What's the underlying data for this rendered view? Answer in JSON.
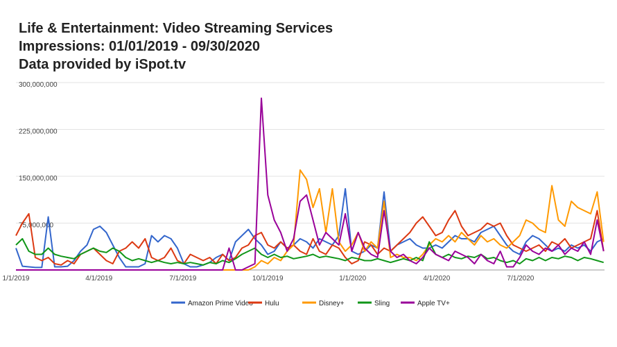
{
  "chart_data": {
    "type": "line",
    "title": [
      "Life & Entertainment: Video Streaming Services",
      "Impressions: 01/01/2019 - 09/30/2020",
      "Data provided by iSpot.tv"
    ],
    "xlabel": "",
    "ylabel": "",
    "xlim": [
      "2019-01-01",
      "2020-09-30"
    ],
    "ylim": [
      0,
      300000000
    ],
    "y_ticks": [
      0,
      75000000,
      150000000,
      225000000,
      300000000
    ],
    "y_tick_labels": [
      "",
      "75,000,000",
      "150,000,000",
      "225,000,000",
      "300,000,000"
    ],
    "x_ticks": [
      "2019-01-01",
      "2019-04-01",
      "2019-07-01",
      "2019-10-01",
      "2020-01-01",
      "2020-04-01",
      "2020-07-01"
    ],
    "x_tick_labels": [
      "1/1/2019",
      "4/1/2019",
      "7/1/2019",
      "10/1/2019",
      "1/1/2020",
      "4/1/2020",
      "7/1/2020"
    ],
    "grid": true,
    "legend": "bottom",
    "x": [
      "2019-01-01",
      "2019-01-08",
      "2019-01-15",
      "2019-01-22",
      "2019-01-29",
      "2019-02-05",
      "2019-02-12",
      "2019-02-19",
      "2019-02-26",
      "2019-03-05",
      "2019-03-12",
      "2019-03-19",
      "2019-03-26",
      "2019-04-02",
      "2019-04-09",
      "2019-04-16",
      "2019-04-23",
      "2019-04-30",
      "2019-05-07",
      "2019-05-14",
      "2019-05-21",
      "2019-05-28",
      "2019-06-04",
      "2019-06-11",
      "2019-06-18",
      "2019-06-25",
      "2019-07-02",
      "2019-07-09",
      "2019-07-16",
      "2019-07-23",
      "2019-07-30",
      "2019-08-06",
      "2019-08-13",
      "2019-08-20",
      "2019-08-27",
      "2019-09-03",
      "2019-09-10",
      "2019-09-17",
      "2019-09-24",
      "2019-10-01",
      "2019-10-08",
      "2019-10-15",
      "2019-10-22",
      "2019-10-29",
      "2019-11-05",
      "2019-11-12",
      "2019-11-19",
      "2019-11-26",
      "2019-12-03",
      "2019-12-10",
      "2019-12-17",
      "2019-12-24",
      "2019-12-31",
      "2020-01-07",
      "2020-01-14",
      "2020-01-21",
      "2020-01-28",
      "2020-02-04",
      "2020-02-11",
      "2020-02-18",
      "2020-02-25",
      "2020-03-03",
      "2020-03-10",
      "2020-03-17",
      "2020-03-24",
      "2020-03-31",
      "2020-04-07",
      "2020-04-14",
      "2020-04-21",
      "2020-04-28",
      "2020-05-05",
      "2020-05-12",
      "2020-05-19",
      "2020-05-26",
      "2020-06-02",
      "2020-06-09",
      "2020-06-16",
      "2020-06-23",
      "2020-06-30",
      "2020-07-07",
      "2020-07-14",
      "2020-07-21",
      "2020-07-28",
      "2020-08-04",
      "2020-08-11",
      "2020-08-18",
      "2020-08-25",
      "2020-09-01",
      "2020-09-08",
      "2020-09-15",
      "2020-09-22",
      "2020-09-29"
    ],
    "series": [
      {
        "name": "Amazon Prime Video",
        "color": "#3366cc",
        "values": [
          35000000.0,
          6000000.0,
          5000000.0,
          4000000.0,
          4000000.0,
          85000000.0,
          5000000.0,
          5000000.0,
          6000000.0,
          15000000.0,
          30000000.0,
          40000000.0,
          65000000.0,
          70000000.0,
          60000000.0,
          40000000.0,
          20000000.0,
          5000000.0,
          5000000.0,
          5000000.0,
          10000000.0,
          55000000.0,
          45000000.0,
          55000000.0,
          50000000.0,
          35000000.0,
          10000000.0,
          5000000.0,
          5000000.0,
          8000000.0,
          12000000.0,
          20000000.0,
          25000000.0,
          15000000.0,
          45000000.0,
          55000000.0,
          65000000.0,
          50000000.0,
          40000000.0,
          25000000.0,
          30000000.0,
          45000000.0,
          35000000.0,
          40000000.0,
          50000000.0,
          45000000.0,
          35000000.0,
          50000000.0,
          45000000.0,
          40000000.0,
          55000000.0,
          130000000.0,
          30000000.0,
          25000000.0,
          30000000.0,
          40000000.0,
          35000000.0,
          125000000.0,
          30000000.0,
          40000000.0,
          45000000.0,
          50000000.0,
          40000000.0,
          35000000.0,
          35000000.0,
          40000000.0,
          35000000.0,
          45000000.0,
          55000000.0,
          50000000.0,
          50000000.0,
          45000000.0,
          60000000.0,
          65000000.0,
          70000000.0,
          55000000.0,
          40000000.0,
          30000000.0,
          25000000.0,
          45000000.0,
          55000000.0,
          50000000.0,
          40000000.0,
          30000000.0,
          35000000.0,
          30000000.0,
          40000000.0,
          35000000.0,
          40000000.0,
          30000000.0,
          45000000.0,
          50000000.0
        ]
      },
      {
        "name": "Hulu",
        "color": "#dc3912",
        "values": [
          55000000.0,
          75000000.0,
          90000000.0,
          20000000.0,
          15000000.0,
          20000000.0,
          10000000.0,
          8000000.0,
          15000000.0,
          10000000.0,
          25000000.0,
          30000000.0,
          35000000.0,
          25000000.0,
          15000000.0,
          10000000.0,
          30000000.0,
          35000000.0,
          45000000.0,
          35000000.0,
          50000000.0,
          20000000.0,
          15000000.0,
          20000000.0,
          35000000.0,
          15000000.0,
          10000000.0,
          25000000.0,
          20000000.0,
          15000000.0,
          20000000.0,
          10000000.0,
          25000000.0,
          15000000.0,
          20000000.0,
          35000000.0,
          40000000.0,
          55000000.0,
          60000000.0,
          40000000.0,
          35000000.0,
          45000000.0,
          35000000.0,
          40000000.0,
          30000000.0,
          25000000.0,
          50000000.0,
          30000000.0,
          25000000.0,
          40000000.0,
          35000000.0,
          20000000.0,
          10000000.0,
          15000000.0,
          45000000.0,
          40000000.0,
          25000000.0,
          35000000.0,
          30000000.0,
          40000000.0,
          50000000.0,
          60000000.0,
          75000000.0,
          85000000.0,
          70000000.0,
          55000000.0,
          60000000.0,
          80000000.0,
          95000000.0,
          70000000.0,
          55000000.0,
          60000000.0,
          65000000.0,
          75000000.0,
          70000000.0,
          75000000.0,
          55000000.0,
          40000000.0,
          35000000.0,
          30000000.0,
          35000000.0,
          40000000.0,
          30000000.0,
          45000000.0,
          40000000.0,
          50000000.0,
          35000000.0,
          40000000.0,
          45000000.0,
          50000000.0,
          95000000.0,
          30000000.0
        ]
      },
      {
        "name": "Disney+",
        "color": "#ff9900",
        "values": [
          0,
          0,
          0,
          0,
          0,
          0,
          0,
          0,
          0,
          0,
          0,
          0,
          0,
          0,
          0,
          0,
          0,
          0,
          0,
          0,
          0,
          0,
          0,
          0,
          0,
          0,
          0,
          0,
          0,
          0,
          0,
          0,
          0,
          0,
          0,
          0,
          0,
          5000000.0,
          15000000.0,
          10000000.0,
          20000000.0,
          15000000.0,
          30000000.0,
          40000000.0,
          160000000.0,
          145000000.0,
          100000000.0,
          130000000.0,
          60000000.0,
          130000000.0,
          45000000.0,
          30000000.0,
          40000000.0,
          60000000.0,
          30000000.0,
          45000000.0,
          35000000.0,
          110000000.0,
          20000000.0,
          25000000.0,
          20000000.0,
          20000000.0,
          15000000.0,
          25000000.0,
          40000000.0,
          50000000.0,
          45000000.0,
          55000000.0,
          45000000.0,
          60000000.0,
          50000000.0,
          40000000.0,
          55000000.0,
          45000000.0,
          50000000.0,
          40000000.0,
          35000000.0,
          45000000.0,
          55000000.0,
          80000000.0,
          75000000.0,
          65000000.0,
          60000000.0,
          135000000.0,
          80000000.0,
          70000000.0,
          110000000.0,
          100000000.0,
          95000000.0,
          90000000.0,
          125000000.0,
          45000000.0
        ]
      },
      {
        "name": "Sling",
        "color": "#109618",
        "values": [
          40000000.0,
          50000000.0,
          30000000.0,
          25000000.0,
          25000000.0,
          35000000.0,
          25000000.0,
          22000000.0,
          20000000.0,
          18000000.0,
          25000000.0,
          30000000.0,
          35000000.0,
          30000000.0,
          28000000.0,
          35000000.0,
          30000000.0,
          20000000.0,
          15000000.0,
          18000000.0,
          15000000.0,
          12000000.0,
          15000000.0,
          12000000.0,
          10000000.0,
          12000000.0,
          10000000.0,
          12000000.0,
          10000000.0,
          8000000.0,
          12000000.0,
          10000000.0,
          15000000.0,
          12000000.0,
          18000000.0,
          25000000.0,
          30000000.0,
          35000000.0,
          25000000.0,
          20000000.0,
          25000000.0,
          20000000.0,
          22000000.0,
          18000000.0,
          20000000.0,
          22000000.0,
          25000000.0,
          20000000.0,
          22000000.0,
          20000000.0,
          18000000.0,
          15000000.0,
          20000000.0,
          18000000.0,
          15000000.0,
          15000000.0,
          18000000.0,
          15000000.0,
          12000000.0,
          15000000.0,
          18000000.0,
          15000000.0,
          20000000.0,
          15000000.0,
          45000000.0,
          25000000.0,
          20000000.0,
          25000000.0,
          20000000.0,
          18000000.0,
          22000000.0,
          20000000.0,
          25000000.0,
          18000000.0,
          20000000.0,
          15000000.0,
          12000000.0,
          15000000.0,
          10000000.0,
          18000000.0,
          15000000.0,
          20000000.0,
          15000000.0,
          20000000.0,
          18000000.0,
          22000000.0,
          20000000.0,
          15000000.0,
          20000000.0,
          18000000.0,
          15000000.0,
          12000000.0
        ]
      },
      {
        "name": "Apple TV+",
        "color": "#990099",
        "values": [
          0,
          0,
          0,
          0,
          0,
          0,
          0,
          0,
          0,
          0,
          0,
          0,
          0,
          0,
          0,
          0,
          0,
          0,
          0,
          0,
          0,
          0,
          0,
          0,
          0,
          0,
          0,
          0,
          0,
          0,
          0,
          0,
          0,
          35000000.0,
          0,
          0,
          5000000.0,
          10000000.0,
          275000000.0,
          120000000.0,
          80000000.0,
          60000000.0,
          30000000.0,
          50000000.0,
          110000000.0,
          120000000.0,
          80000000.0,
          40000000.0,
          60000000.0,
          50000000.0,
          40000000.0,
          90000000.0,
          30000000.0,
          60000000.0,
          35000000.0,
          25000000.0,
          20000000.0,
          95000000.0,
          30000000.0,
          20000000.0,
          25000000.0,
          15000000.0,
          10000000.0,
          20000000.0,
          35000000.0,
          25000000.0,
          20000000.0,
          15000000.0,
          30000000.0,
          25000000.0,
          20000000.0,
          10000000.0,
          25000000.0,
          15000000.0,
          10000000.0,
          30000000.0,
          5000000.0,
          5000000.0,
          20000000.0,
          40000000.0,
          30000000.0,
          25000000.0,
          35000000.0,
          30000000.0,
          40000000.0,
          25000000.0,
          35000000.0,
          30000000.0,
          45000000.0,
          25000000.0,
          80000000.0,
          30000000.0
        ]
      }
    ]
  }
}
